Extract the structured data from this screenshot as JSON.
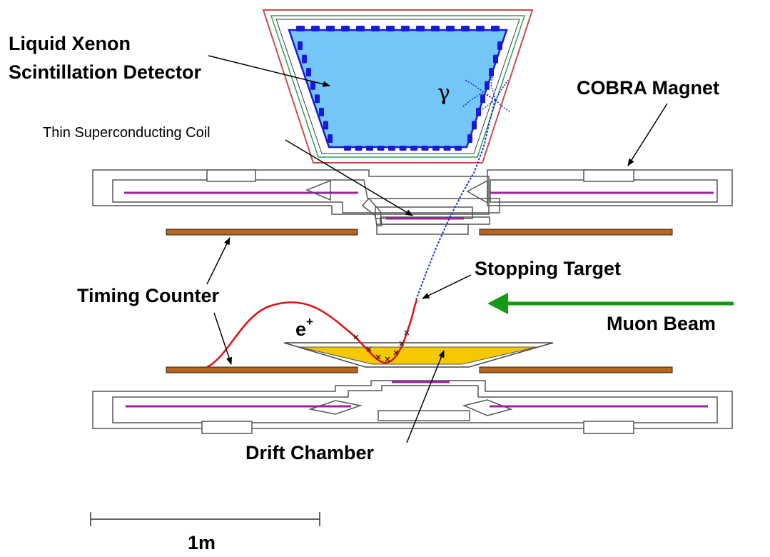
{
  "labels": {
    "xenon_line1": "Liquid Xenon",
    "xenon_line2": "Scintillation Detector",
    "cobra": "COBRA Magnet",
    "coil": "Thin Superconducting Coil",
    "target": "Stopping Target",
    "timing": "Timing Counter",
    "muon": "Muon Beam",
    "drift": "Drift Chamber",
    "positron": "e",
    "positron_sup": "+",
    "gamma": "γ",
    "scale": "1m"
  },
  "colors": {
    "xenon_fill": "#73c6f5",
    "pmt": "#1a1ad6",
    "cryostat_outer": "#c84b4b",
    "cryostat_green": "#2aa05a",
    "coil": "#a020a0",
    "timing_counter": "#b8651e",
    "drift_chamber": "#f6c800",
    "positron_track": "#e01010",
    "gamma_track": "#2030e0",
    "muon_beam": "#129a12"
  }
}
